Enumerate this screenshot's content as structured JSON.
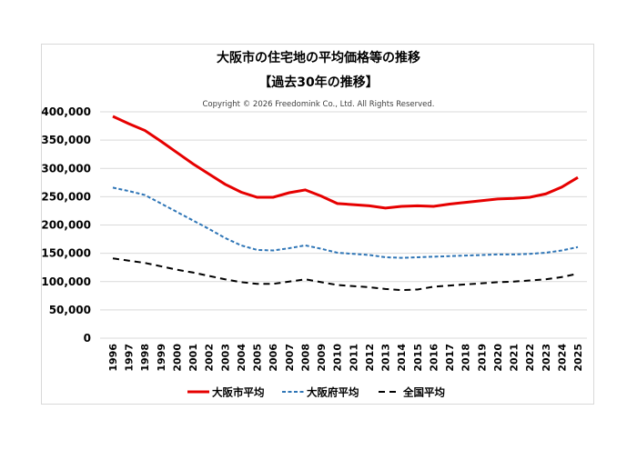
{
  "chart_data": {
    "type": "line",
    "title": "大阪市の住宅地の平均価格等の推移",
    "subtitle": "【過去30年の推移】",
    "copyright": "Copyright © 2026 Freedomink Co., Ltd. All Rights Reserved.",
    "xlabel": "",
    "ylabel": "",
    "ylim": [
      0,
      400000
    ],
    "yticks": [
      "0",
      "50,000",
      "100,000",
      "150,000",
      "200,000",
      "250,000",
      "300,000",
      "350,000",
      "400,000"
    ],
    "grid": true,
    "legend": "bottom",
    "x": [
      "1996",
      "1997",
      "1998",
      "1999",
      "2000",
      "2001",
      "2002",
      "2003",
      "2004",
      "2005",
      "2006",
      "2007",
      "2008",
      "2009",
      "2010",
      "2011",
      "2012",
      "2013",
      "2014",
      "2015",
      "2016",
      "2017",
      "2018",
      "2019",
      "2020",
      "2021",
      "2022",
      "2023",
      "2024",
      "2025"
    ],
    "series": [
      {
        "name": "大阪市平均",
        "color": "#e60000",
        "style": "solid",
        "values": [
          392000,
          379000,
          367000,
          348000,
          328000,
          308000,
          290000,
          272000,
          258000,
          249000,
          249000,
          257000,
          262000,
          251000,
          238000,
          236000,
          234000,
          230000,
          233000,
          234000,
          233000,
          237000,
          240000,
          243000,
          246000,
          247000,
          249000,
          255000,
          267000,
          284000
        ]
      },
      {
        "name": "大阪府平均",
        "color": "#2e75b6",
        "style": "dotted",
        "values": [
          266000,
          260000,
          253000,
          238000,
          223000,
          208000,
          193000,
          177000,
          164000,
          156000,
          155000,
          159000,
          164000,
          158000,
          151000,
          149000,
          147000,
          143000,
          142000,
          143000,
          144000,
          145000,
          146000,
          147000,
          148000,
          148000,
          149000,
          151000,
          155000,
          161000
        ]
      },
      {
        "name": "全国平均",
        "color": "#000000",
        "style": "dashed",
        "values": [
          141000,
          137000,
          133000,
          127000,
          121000,
          116000,
          110000,
          104000,
          99000,
          96000,
          96000,
          100000,
          104000,
          99000,
          94000,
          92000,
          90000,
          87000,
          85000,
          86000,
          91000,
          93000,
          95000,
          97000,
          99000,
          100000,
          102000,
          104000,
          108000,
          114000
        ]
      }
    ]
  }
}
